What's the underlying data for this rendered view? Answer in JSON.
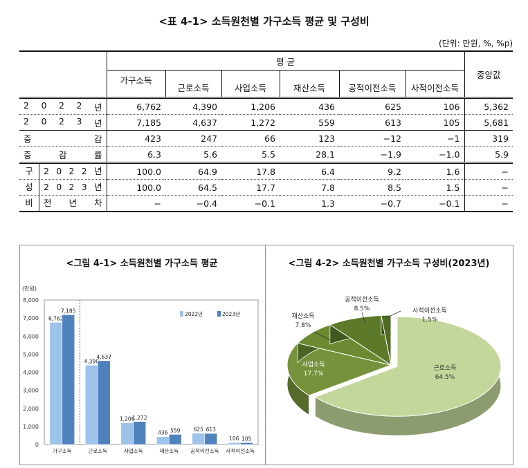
{
  "table": {
    "title": "<표 4-1> 소득원천별 가구소득 평균 및 구성비",
    "unit": "(단위: 만원, %, %p)",
    "header": {
      "group": "평  균",
      "cols": [
        "가구소득",
        "근로소득",
        "사업소득",
        "재산소득",
        "공적이전소득",
        "사적이전소득"
      ],
      "median": "중앙값"
    },
    "rows": [
      {
        "label": [
          "2",
          "0",
          "2",
          "2",
          "년"
        ],
        "values": [
          "6,762",
          "4,390",
          "1,206",
          "436",
          "625",
          "106",
          "5,362"
        ]
      },
      {
        "label": [
          "2",
          "0",
          "2",
          "3",
          "년"
        ],
        "values": [
          "7,185",
          "4,637",
          "1,272",
          "559",
          "613",
          "105",
          "5,681"
        ]
      },
      {
        "label": [
          "증",
          "감"
        ],
        "values": [
          "423",
          "247",
          "66",
          "123",
          "−12",
          "−1",
          "319"
        ]
      },
      {
        "label": [
          "증",
          "감",
          "률"
        ],
        "values": [
          "6.3",
          "5.6",
          "5.5",
          "28.1",
          "−1.9",
          "−1.0",
          "5.9"
        ]
      }
    ],
    "comp_label": [
      "구",
      "성",
      "비"
    ],
    "comp_rows": [
      {
        "label": [
          "2",
          "0",
          "2",
          "2",
          "년"
        ],
        "values": [
          "100.0",
          "64.9",
          "17.8",
          "6.4",
          "9.2",
          "1.6",
          "−"
        ]
      },
      {
        "label": [
          "2",
          "0",
          "2",
          "3",
          "년"
        ],
        "values": [
          "100.0",
          "64.5",
          "17.7",
          "7.8",
          "8.5",
          "1.5",
          "−"
        ]
      },
      {
        "label": [
          "전",
          "년",
          "차"
        ],
        "values": [
          "−",
          "−0.4",
          "−0.1",
          "1.3",
          "−0.7",
          "−0.1",
          "−"
        ]
      }
    ]
  },
  "chart_data": [
    {
      "type": "bar",
      "title": "<그림 4-1> 소득원천별 가구소득 평균",
      "ylabel": "(만원)",
      "ylim": [
        0,
        8000
      ],
      "yticks": [
        "0",
        "1,000",
        "2,000",
        "3,000",
        "4,000",
        "5,000",
        "6,000",
        "7,000",
        "8,000"
      ],
      "categories": [
        "가구소득",
        "근로소득",
        "사업소득",
        "재산소득",
        "공적이전소득",
        "사적이전소득"
      ],
      "series": [
        {
          "name": "2022년",
          "values": [
            6762,
            4390,
            1206,
            436,
            625,
            106
          ],
          "labels": [
            "6,762",
            "4,390",
            "1,206",
            "436",
            "625",
            "106"
          ],
          "color": "#9dc3ea"
        },
        {
          "name": "2023년",
          "values": [
            7185,
            4637,
            1272,
            559,
            613,
            105
          ],
          "labels": [
            "7,185",
            "4,637",
            "1,272",
            "559",
            "613",
            "105"
          ],
          "color": "#4f81bd"
        }
      ],
      "legend": "top-right",
      "grid": false
    },
    {
      "type": "pie",
      "title": "<그림 4-2> 소득원천별 가구소득 구성비(2023년)",
      "slices": [
        {
          "label": "근로소득",
          "value": 64.5,
          "text": "64.5%",
          "color": "#c4d79b"
        },
        {
          "label": "사업소득",
          "value": 17.7,
          "text": "17.7%",
          "color": "#76933c"
        },
        {
          "label": "재산소득",
          "value": 7.8,
          "text": "7.8%",
          "color": "#6b8a32"
        },
        {
          "label": "공적이전소득",
          "value": 8.5,
          "text": "8.5%",
          "color": "#5c7a2a"
        },
        {
          "label": "사적이전소득",
          "value": 1.5,
          "text": "1.5%",
          "color": "#4f6b22"
        }
      ],
      "style": "3d-exploded"
    }
  ]
}
